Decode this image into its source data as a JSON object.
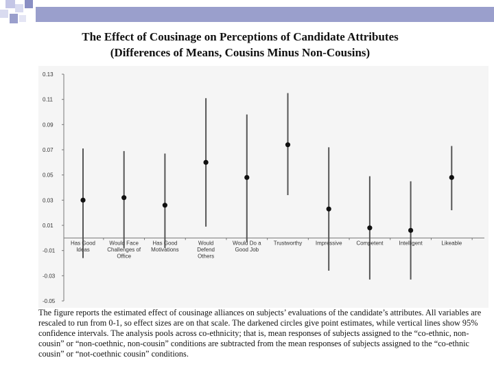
{
  "title_line1": "The Effect of Cousinage on Perceptions of Candidate Attributes",
  "title_line2": "(Differences of Means, Cousins Minus Non-Cousins)",
  "caption": "The figure reports the estimated effect of cousinage alliances on subjects’ evaluations of the candidate’s attributes. All variables are rescaled to run from 0-1, so effect sizes are on that scale. The darkened circles give point estimates, while vertical lines show 95% confidence intervals.  The analysis pools across co-ethnicity; that is, mean responses of subjects assigned to the “co-ethnic, non-cousin” or “non-coethnic, non-cousin” conditions are subtracted from the mean responses of subjects assigned to the “co-ethnic cousin” or “not-coethnic cousin” conditions.",
  "colors": {
    "top_bar": "#9a9fcc",
    "corner_light": "#c4c6e6",
    "corner_dark": "#8a8fc4",
    "panel_bg": "#f5f5f5",
    "axis": "#777777",
    "interval_line": "#555555",
    "point": "#111111",
    "text": "#333333"
  },
  "chart_data": {
    "type": "scatter",
    "subtype": "point-estimate-with-confidence-interval",
    "ylim": [
      -0.05,
      0.13
    ],
    "yticks": [
      "0.13",
      "0.11",
      "0.09",
      "0.07",
      "0.05",
      "0.03",
      "0.01",
      "-0.01",
      "-0.03",
      "-0.05"
    ],
    "ytick_values": [
      0.13,
      0.11,
      0.09,
      0.07,
      0.05,
      0.03,
      0.01,
      -0.01,
      -0.03,
      -0.05
    ],
    "grid": false,
    "xlabel": "",
    "ylabel": "",
    "categories": [
      {
        "label": [
          "Has Good",
          "Ideas"
        ],
        "estimate": 0.03,
        "ci_low": -0.016,
        "ci_high": 0.071
      },
      {
        "label": [
          "Would Face",
          "Challenges of",
          "Office"
        ],
        "estimate": 0.032,
        "ci_low": -0.008,
        "ci_high": 0.069
      },
      {
        "label": [
          "Has Good",
          "Motivations"
        ],
        "estimate": 0.026,
        "ci_low": -0.008,
        "ci_high": 0.067
      },
      {
        "label": [
          "Would",
          "Defend",
          "Others"
        ],
        "estimate": 0.06,
        "ci_low": 0.009,
        "ci_high": 0.111
      },
      {
        "label": [
          "Would Do a",
          "Good Job"
        ],
        "estimate": 0.048,
        "ci_low": -0.003,
        "ci_high": 0.098
      },
      {
        "label": [
          "Trustworthy"
        ],
        "estimate": 0.074,
        "ci_low": 0.034,
        "ci_high": 0.115
      },
      {
        "label": [
          "Impressive"
        ],
        "estimate": 0.023,
        "ci_low": -0.026,
        "ci_high": 0.072
      },
      {
        "label": [
          "Competent"
        ],
        "estimate": 0.008,
        "ci_low": -0.033,
        "ci_high": 0.049
      },
      {
        "label": [
          "Intelligent"
        ],
        "estimate": 0.006,
        "ci_low": -0.033,
        "ci_high": 0.045
      },
      {
        "label": [
          "Likeable"
        ],
        "estimate": 0.048,
        "ci_low": 0.022,
        "ci_high": 0.073
      }
    ]
  }
}
